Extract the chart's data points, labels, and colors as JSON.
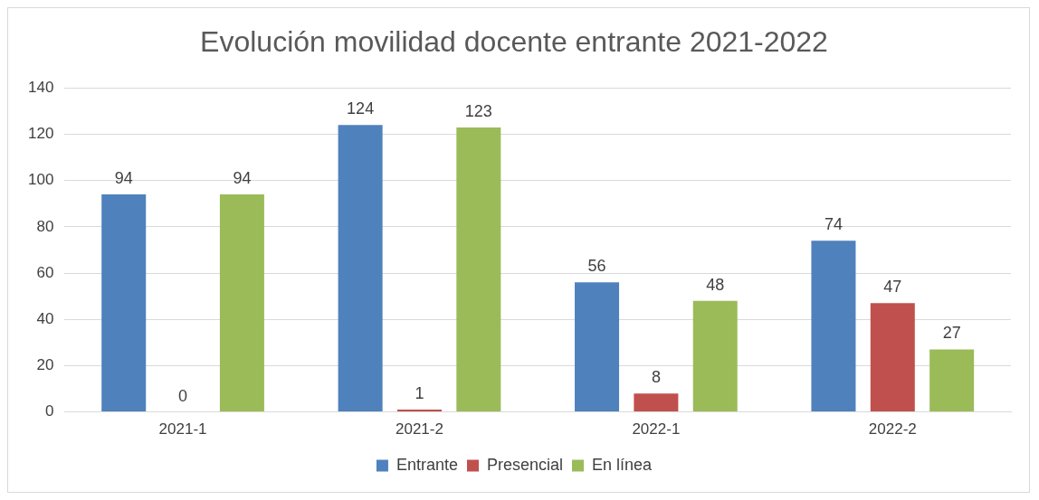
{
  "chart_data": {
    "type": "bar",
    "title": "Evolución movilidad docente entrante 2021-2022",
    "categories": [
      "2021-1",
      "2021-2",
      "2022-1",
      "2022-2"
    ],
    "series": [
      {
        "name": "Entrante",
        "color": "#4f81bd",
        "values": [
          94,
          124,
          56,
          74
        ]
      },
      {
        "name": "Presencial",
        "color": "#c0504d",
        "values": [
          0,
          1,
          8,
          47
        ]
      },
      {
        "name": "En línea",
        "color": "#9bbb59",
        "values": [
          94,
          123,
          48,
          27
        ]
      }
    ],
    "ylim": [
      0,
      140
    ],
    "yticks": [
      0,
      20,
      40,
      60,
      80,
      100,
      120,
      140
    ],
    "grid": "y",
    "legend": "bottom",
    "data_labels": true
  }
}
